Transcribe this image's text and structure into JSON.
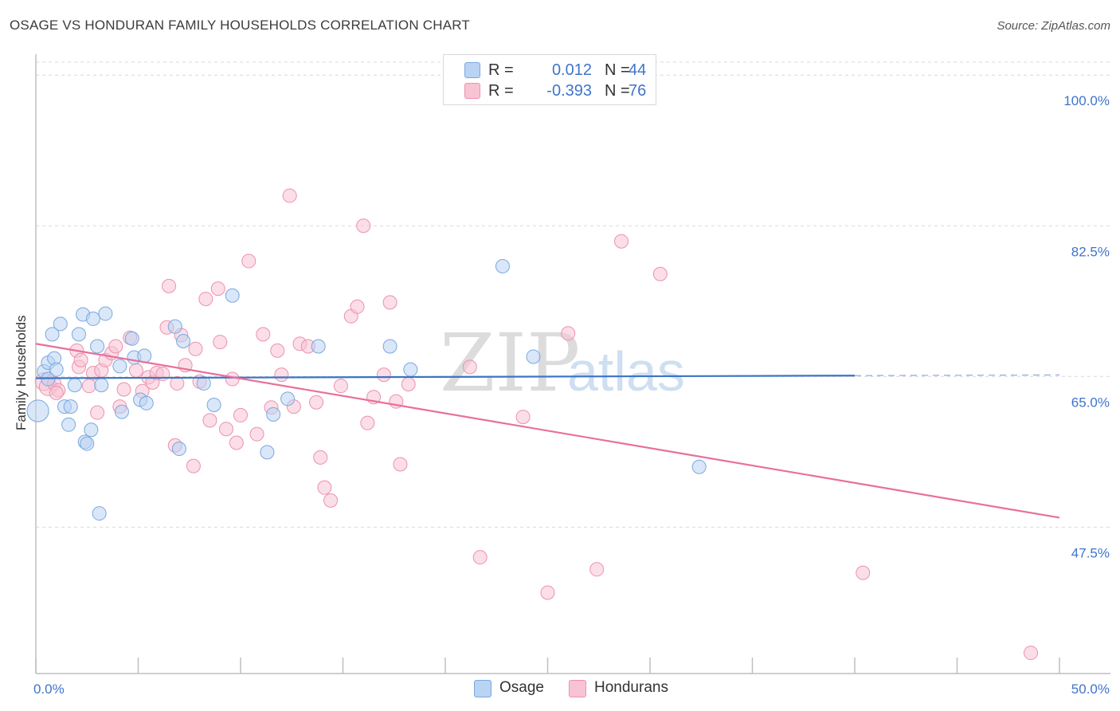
{
  "title": "OSAGE VS HONDURAN FAMILY HOUSEHOLDS CORRELATION CHART",
  "source": "Source: ZipAtlas.com",
  "watermark": {
    "zip": "ZIP",
    "atlas": "atlas"
  },
  "legend": {
    "rows": [
      {
        "label": "R =",
        "r": "0.012",
        "n_label": "N =",
        "n": "44"
      },
      {
        "label": "R =",
        "r": "-0.393",
        "n_label": "N =",
        "n": "76"
      }
    ]
  },
  "bottom_legend": {
    "osage": "Osage",
    "hondurans": "Hondurans"
  },
  "colors": {
    "osage_fill": "#b9d3f3",
    "osage_stroke": "#7aa8e0",
    "osage_line": "#3a75c4",
    "honduran_fill": "#f8c3d3",
    "honduran_stroke": "#ec92ae",
    "honduran_line": "#e8709a",
    "axis_label": "#3f74cc",
    "grid": "#d9d9d9"
  },
  "chart_data": {
    "type": "scatter",
    "title": "OSAGE VS HONDURAN FAMILY HOUSEHOLDS CORRELATION CHART",
    "xlabel": "",
    "ylabel": "Family Households",
    "xlim": [
      0,
      50
    ],
    "ylim": [
      30.5,
      101.5
    ],
    "x_tick_labels": [
      "0.0%",
      "50.0%"
    ],
    "y_ticks": [
      47.5,
      65.0,
      82.5,
      100.0
    ],
    "y_tick_labels": [
      "47.5%",
      "65.0%",
      "82.5%",
      "100.0%"
    ],
    "series": [
      {
        "name": "Osage",
        "r": 0.012,
        "n": 44,
        "trend": {
          "x": [
            0,
            40
          ],
          "y": [
            64.8,
            65.1
          ],
          "dashed_to": 50
        },
        "points": [
          [
            0.1,
            61.0,
            1.6
          ],
          [
            0.4,
            65.6,
            1
          ],
          [
            0.6,
            66.6,
            1
          ],
          [
            0.9,
            67.1,
            1
          ],
          [
            0.6,
            64.7,
            1
          ],
          [
            1.0,
            65.8,
            1
          ],
          [
            0.8,
            69.9,
            1
          ],
          [
            1.2,
            71.1,
            1
          ],
          [
            1.4,
            61.5,
            1
          ],
          [
            1.6,
            59.4,
            1
          ],
          [
            1.7,
            61.5,
            1
          ],
          [
            1.9,
            64.0,
            1
          ],
          [
            2.1,
            69.9,
            1
          ],
          [
            2.3,
            72.2,
            1
          ],
          [
            2.4,
            57.4,
            1
          ],
          [
            2.5,
            57.2,
            1
          ],
          [
            2.7,
            58.8,
            1
          ],
          [
            2.8,
            71.7,
            1
          ],
          [
            3.0,
            68.5,
            1
          ],
          [
            3.2,
            64.0,
            1
          ],
          [
            3.4,
            72.3,
            1
          ],
          [
            4.1,
            66.2,
            1
          ],
          [
            4.2,
            60.9,
            1
          ],
          [
            4.7,
            69.4,
            1
          ],
          [
            4.8,
            67.2,
            1
          ],
          [
            5.1,
            62.3,
            1
          ],
          [
            5.3,
            67.4,
            1
          ],
          [
            5.4,
            61.9,
            1
          ],
          [
            6.8,
            70.8,
            1
          ],
          [
            7.0,
            56.6,
            1
          ],
          [
            7.2,
            69.1,
            1
          ],
          [
            8.2,
            64.2,
            1
          ],
          [
            8.7,
            61.7,
            1
          ],
          [
            9.6,
            74.4,
            1
          ],
          [
            11.3,
            56.2,
            1
          ],
          [
            11.6,
            60.6,
            1
          ],
          [
            12.3,
            62.4,
            1
          ],
          [
            13.8,
            68.5,
            1
          ],
          [
            17.3,
            68.5,
            1
          ],
          [
            18.3,
            65.8,
            1
          ],
          [
            3.1,
            49.1,
            1
          ],
          [
            22.8,
            77.8,
            1
          ],
          [
            24.3,
            67.3,
            1
          ],
          [
            32.4,
            54.5,
            1
          ]
        ]
      },
      {
        "name": "Hondurans",
        "r": -0.393,
        "n": 76,
        "trend": {
          "x": [
            0,
            50
          ],
          "y": [
            68.8,
            48.6
          ]
        },
        "points": [
          [
            0.4,
            64.4,
            1.3
          ],
          [
            0.6,
            63.8,
            1.3
          ],
          [
            0.9,
            64.2,
            1
          ],
          [
            1.1,
            63.4,
            1
          ],
          [
            2.0,
            68.0,
            1
          ],
          [
            2.1,
            66.1,
            1
          ],
          [
            2.2,
            66.9,
            1
          ],
          [
            2.6,
            63.9,
            1
          ],
          [
            2.8,
            65.4,
            1
          ],
          [
            3.0,
            60.8,
            1
          ],
          [
            3.2,
            65.7,
            1
          ],
          [
            3.4,
            66.9,
            1
          ],
          [
            3.7,
            67.7,
            1
          ],
          [
            3.9,
            68.5,
            1
          ],
          [
            4.1,
            61.5,
            1
          ],
          [
            4.3,
            63.5,
            1
          ],
          [
            4.6,
            69.5,
            1
          ],
          [
            4.9,
            65.7,
            1
          ],
          [
            5.2,
            63.3,
            1
          ],
          [
            5.5,
            64.9,
            1
          ],
          [
            5.7,
            64.3,
            1
          ],
          [
            5.9,
            65.4,
            1
          ],
          [
            6.2,
            65.3,
            1
          ],
          [
            6.4,
            70.7,
            1
          ],
          [
            6.5,
            75.5,
            1
          ],
          [
            6.8,
            57.0,
            1
          ],
          [
            7.1,
            69.8,
            1
          ],
          [
            7.3,
            66.3,
            1
          ],
          [
            7.7,
            54.6,
            1
          ],
          [
            7.8,
            68.2,
            1
          ],
          [
            8.0,
            64.4,
            1
          ],
          [
            8.3,
            74.0,
            1
          ],
          [
            8.5,
            59.9,
            1
          ],
          [
            8.9,
            75.2,
            1
          ],
          [
            9.0,
            69.0,
            1
          ],
          [
            9.3,
            58.9,
            1
          ],
          [
            9.6,
            64.7,
            1
          ],
          [
            9.8,
            57.3,
            1
          ],
          [
            10.0,
            60.5,
            1
          ],
          [
            10.4,
            78.4,
            1
          ],
          [
            10.8,
            58.3,
            1
          ],
          [
            11.1,
            69.9,
            1
          ],
          [
            11.5,
            61.4,
            1
          ],
          [
            11.8,
            68.0,
            1
          ],
          [
            12.0,
            65.2,
            1
          ],
          [
            12.4,
            86.0,
            1
          ],
          [
            12.6,
            61.5,
            1
          ],
          [
            12.9,
            68.8,
            1
          ],
          [
            13.3,
            68.5,
            1
          ],
          [
            13.7,
            62.0,
            1
          ],
          [
            13.9,
            55.6,
            1
          ],
          [
            14.1,
            52.1,
            1
          ],
          [
            14.4,
            50.6,
            1
          ],
          [
            14.9,
            63.9,
            1
          ],
          [
            15.4,
            72.0,
            1
          ],
          [
            15.7,
            73.1,
            1
          ],
          [
            16.0,
            82.5,
            1
          ],
          [
            16.2,
            59.6,
            1
          ],
          [
            16.5,
            62.6,
            1
          ],
          [
            17.0,
            65.2,
            1
          ],
          [
            17.3,
            73.6,
            1
          ],
          [
            17.6,
            62.1,
            1
          ],
          [
            17.8,
            54.8,
            1
          ],
          [
            18.2,
            64.1,
            1
          ],
          [
            21.2,
            66.1,
            1
          ],
          [
            21.7,
            44.0,
            1
          ],
          [
            23.8,
            60.3,
            1
          ],
          [
            25.0,
            39.9,
            1
          ],
          [
            26.0,
            70.0,
            1
          ],
          [
            27.4,
            42.6,
            1
          ],
          [
            28.6,
            80.7,
            1
          ],
          [
            30.5,
            76.9,
            1
          ],
          [
            40.4,
            42.2,
            1
          ],
          [
            48.6,
            32.9,
            1
          ],
          [
            1.0,
            63.1,
            1
          ],
          [
            6.9,
            64.2,
            1
          ]
        ]
      }
    ]
  }
}
